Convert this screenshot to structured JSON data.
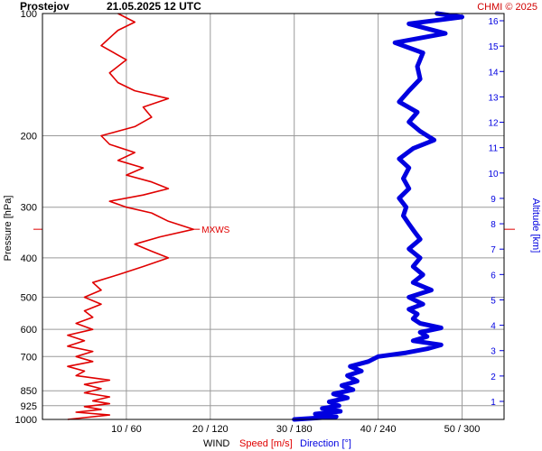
{
  "header": {
    "station": "Prostejov",
    "datetime": "21.05.2025 12 UTC",
    "credit": "CHMI © 2025"
  },
  "colors": {
    "speed": "#e00000",
    "direction": "#0000e0",
    "grid": "#9a9a9a",
    "axis": "#000000"
  },
  "footer": {
    "wind_label": "WIND",
    "speed_label": "Speed [m/s]",
    "direction_label": "Direction [°]"
  },
  "chart_data": {
    "type": "line",
    "y_left": {
      "label": "Pressure [hPa]",
      "ticks": [
        100,
        200,
        300,
        400,
        500,
        600,
        700,
        850,
        925,
        1000
      ],
      "range": [
        1000,
        100
      ],
      "scale": "log"
    },
    "y_right": {
      "label": "Altitude [km]",
      "ticks": [
        1,
        2,
        3,
        4,
        5,
        6,
        7,
        8,
        9,
        10,
        11,
        12,
        13,
        14,
        15,
        16
      ]
    },
    "x_ticks": [
      "10 / 60",
      "20 / 120",
      "30 / 180",
      "40 / 240",
      "50 / 300"
    ],
    "speed_range": [
      0,
      55
    ],
    "direction_range": [
      0,
      330
    ],
    "annotations": [
      {
        "label": "MXWS",
        "pressure": 340,
        "speed": 18
      }
    ],
    "series": [
      {
        "name": "Speed [m/s]",
        "points": [
          [
            1000,
            3
          ],
          [
            990,
            5
          ],
          [
            975,
            8
          ],
          [
            960,
            4
          ],
          [
            945,
            7
          ],
          [
            930,
            5
          ],
          [
            915,
            8
          ],
          [
            900,
            6
          ],
          [
            880,
            8
          ],
          [
            860,
            5
          ],
          [
            840,
            7
          ],
          [
            820,
            5
          ],
          [
            800,
            8
          ],
          [
            780,
            4
          ],
          [
            760,
            5
          ],
          [
            740,
            3
          ],
          [
            720,
            6
          ],
          [
            700,
            4
          ],
          [
            680,
            6
          ],
          [
            660,
            3
          ],
          [
            640,
            5
          ],
          [
            620,
            3
          ],
          [
            600,
            6
          ],
          [
            580,
            4
          ],
          [
            560,
            6
          ],
          [
            540,
            5
          ],
          [
            520,
            7
          ],
          [
            500,
            5
          ],
          [
            480,
            7
          ],
          [
            460,
            6
          ],
          [
            440,
            9
          ],
          [
            420,
            12
          ],
          [
            400,
            15
          ],
          [
            385,
            13
          ],
          [
            370,
            11
          ],
          [
            355,
            14
          ],
          [
            340,
            18
          ],
          [
            325,
            15
          ],
          [
            310,
            13
          ],
          [
            300,
            10
          ],
          [
            290,
            8
          ],
          [
            280,
            12
          ],
          [
            270,
            15
          ],
          [
            260,
            13
          ],
          [
            250,
            10
          ],
          [
            240,
            12
          ],
          [
            230,
            9
          ],
          [
            220,
            11
          ],
          [
            210,
            8
          ],
          [
            200,
            7
          ],
          [
            190,
            11
          ],
          [
            180,
            13
          ],
          [
            170,
            12
          ],
          [
            162,
            15
          ],
          [
            155,
            11
          ],
          [
            148,
            9
          ],
          [
            140,
            8
          ],
          [
            130,
            10
          ],
          [
            120,
            7
          ],
          [
            110,
            9
          ],
          [
            105,
            11
          ],
          [
            100,
            9
          ]
        ]
      },
      {
        "name": "Direction [°]",
        "points": [
          [
            1000,
            180
          ],
          [
            985,
            210
          ],
          [
            970,
            195
          ],
          [
            955,
            213
          ],
          [
            940,
            200
          ],
          [
            925,
            212
          ],
          [
            905,
            205
          ],
          [
            885,
            218
          ],
          [
            865,
            208
          ],
          [
            845,
            222
          ],
          [
            825,
            214
          ],
          [
            805,
            225
          ],
          [
            780,
            218
          ],
          [
            760,
            228
          ],
          [
            740,
            220
          ],
          [
            720,
            233
          ],
          [
            700,
            240
          ],
          [
            685,
            260
          ],
          [
            670,
            275
          ],
          [
            655,
            285
          ],
          [
            640,
            265
          ],
          [
            625,
            275
          ],
          [
            610,
            270
          ],
          [
            595,
            285
          ],
          [
            580,
            270
          ],
          [
            565,
            265
          ],
          [
            550,
            268
          ],
          [
            535,
            262
          ],
          [
            520,
            272
          ],
          [
            500,
            262
          ],
          [
            480,
            278
          ],
          [
            460,
            265
          ],
          [
            440,
            272
          ],
          [
            420,
            265
          ],
          [
            400,
            270
          ],
          [
            380,
            262
          ],
          [
            360,
            270
          ],
          [
            345,
            266
          ],
          [
            330,
            262
          ],
          [
            315,
            258
          ],
          [
            300,
            260
          ],
          [
            285,
            255
          ],
          [
            270,
            262
          ],
          [
            255,
            258
          ],
          [
            240,
            262
          ],
          [
            228,
            255
          ],
          [
            215,
            265
          ],
          [
            205,
            280
          ],
          [
            195,
            270
          ],
          [
            185,
            262
          ],
          [
            175,
            268
          ],
          [
            165,
            255
          ],
          [
            155,
            262
          ],
          [
            145,
            270
          ],
          [
            135,
            268
          ],
          [
            125,
            272
          ],
          [
            118,
            252
          ],
          [
            112,
            288
          ],
          [
            106,
            262
          ],
          [
            102,
            300
          ],
          [
            100,
            282
          ]
        ]
      }
    ]
  }
}
